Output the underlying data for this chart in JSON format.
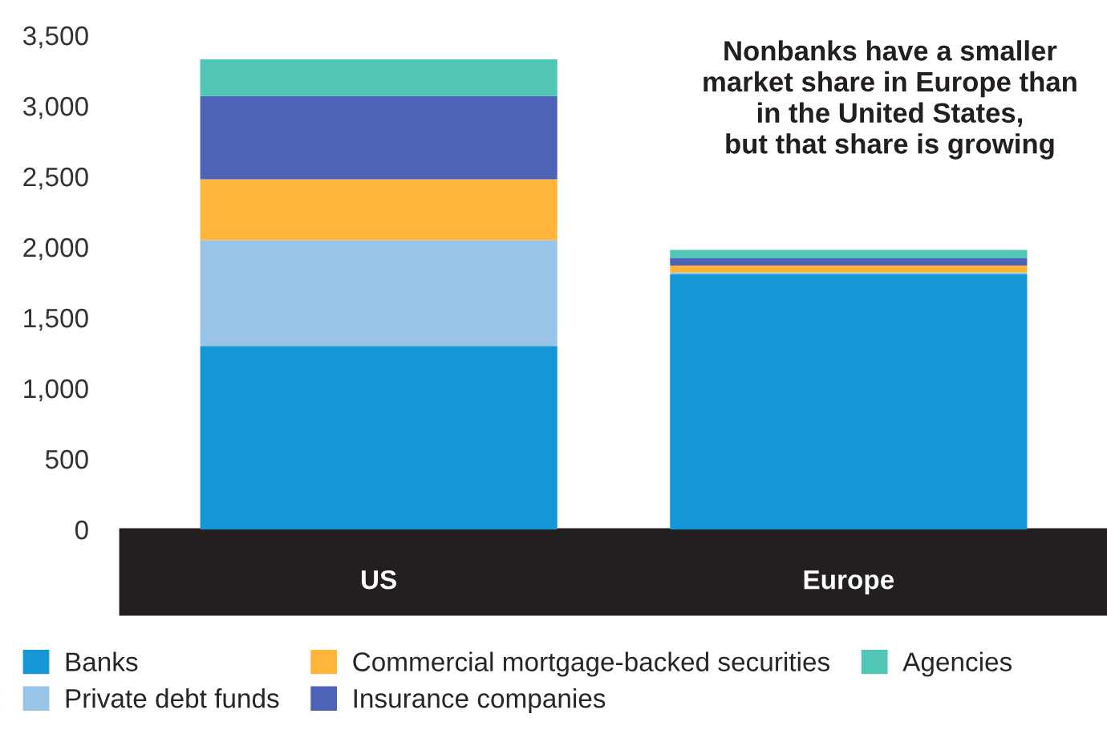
{
  "chart_data": {
    "type": "bar",
    "stacked": true,
    "title": "Nonbanks have a smaller\nmarket share in Europe than\nin the United States,\nbut that share is growing",
    "categories": [
      "US",
      "Europe"
    ],
    "series": [
      {
        "name": "Banks",
        "color": "#1697d5",
        "values": [
          1300,
          1810
        ]
      },
      {
        "name": "Private debt funds",
        "color": "#99c4e7",
        "values": [
          750,
          10
        ]
      },
      {
        "name": "Commercial mortgage-backed securities",
        "color": "#ffb53a",
        "values": [
          430,
          50
        ]
      },
      {
        "name": "Insurance companies",
        "color": "#4c63b7",
        "values": [
          590,
          50
        ]
      },
      {
        "name": "Agencies",
        "color": "#52c6b6",
        "values": [
          260,
          60
        ]
      }
    ],
    "ylim": [
      0,
      3500
    ],
    "yticks": [
      {
        "value": 0,
        "label": "0"
      },
      {
        "value": 500,
        "label": "500"
      },
      {
        "value": 1000,
        "label": "1,000"
      },
      {
        "value": 1500,
        "label": "1,500"
      },
      {
        "value": 2000,
        "label": "2,000"
      },
      {
        "value": 2500,
        "label": "2,500"
      },
      {
        "value": 3000,
        "label": "3,000"
      },
      {
        "value": 3500,
        "label": "3,500"
      }
    ],
    "grid": false,
    "legend": "bottom"
  }
}
